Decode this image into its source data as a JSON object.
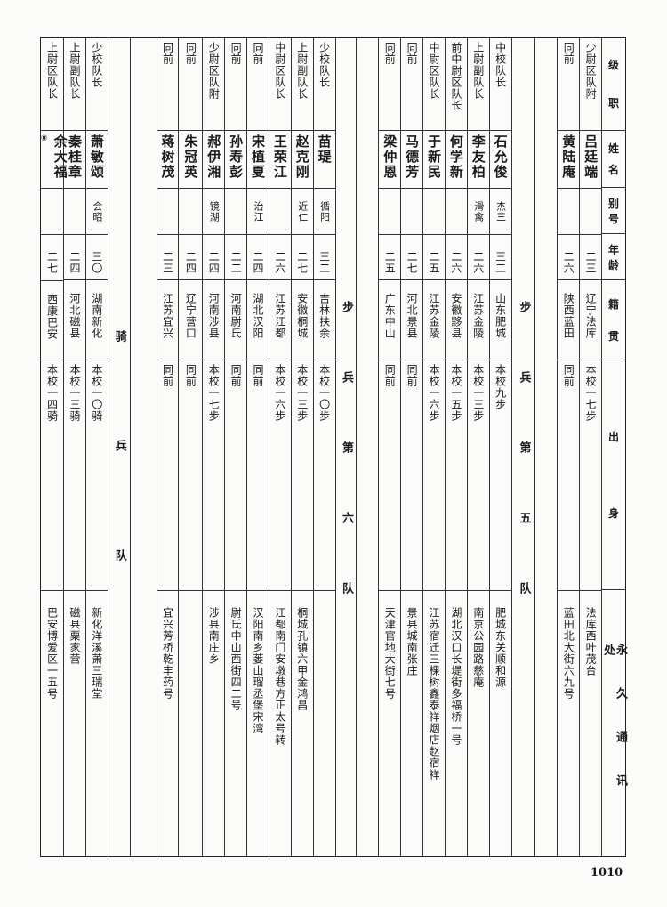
{
  "header": [
    "级职",
    "姓名",
    "别号",
    "年龄",
    "籍贯",
    "出身",
    "永久通讯处"
  ],
  "groups": [
    {
      "label": "",
      "rows": [
        {
          "rank": "少尉区队附",
          "name": "吕廷端",
          "alias": "",
          "age": "二三",
          "origin": "辽宁法库",
          "background": "本校一七步",
          "address": "法库西叶茂台"
        },
        {
          "rank": "同前",
          "name": "黄陆庵",
          "alias": "",
          "age": "二六",
          "origin": "陕西蓝田",
          "background": "同前",
          "address": "蓝田北大街六九号"
        }
      ]
    },
    {
      "label": "步兵第五队",
      "rows": [
        {
          "rank": "中校队长",
          "name": "石允俊",
          "alias": "杰三",
          "age": "三二",
          "origin": "山东肥城",
          "background": "本校九步",
          "address": "肥城东关顺和源"
        },
        {
          "rank": "上尉副队长",
          "name": "李友柏",
          "alias": "滑禽",
          "age": "二六",
          "origin": "江苏金陵",
          "background": "本校一三步",
          "address": "南京公园路慈庵"
        },
        {
          "rank": "前中尉区队长",
          "name": "何学新",
          "alias": "",
          "age": "二六",
          "origin": "安徽黟县",
          "background": "本校一五步",
          "address": "湖北汉口长堤街多福桥一号"
        },
        {
          "rank": "中尉区队长",
          "name": "于新民",
          "alias": "",
          "age": "二五",
          "origin": "江苏金陵",
          "background": "本校一六步",
          "address": "江苏宿迁三棵树鑫泰祥烟店赵宿祥"
        },
        {
          "rank": "同前",
          "name": "马德芳",
          "alias": "",
          "age": "二七",
          "origin": "河北景县",
          "background": "同前",
          "address": "景县城南张庄"
        },
        {
          "rank": "同前",
          "name": "梁仲恩",
          "alias": "",
          "age": "二五",
          "origin": "广东中山",
          "background": "同前",
          "address": "天津官地大街七号"
        }
      ]
    },
    {
      "label": "步兵第六队",
      "rows": [
        {
          "rank": "少校队长",
          "name": "苗瑅",
          "alias": "循阳",
          "age": "三二",
          "origin": "吉林扶余",
          "background": "本校一〇步",
          "address": ""
        },
        {
          "rank": "上尉副队长",
          "name": "赵克刚",
          "alias": "近仁",
          "age": "二七",
          "origin": "安徽桐城",
          "background": "本校一三步",
          "address": "桐城孔镇六甲金鸿昌"
        },
        {
          "rank": "中尉区队长",
          "name": "王荣江",
          "alias": "",
          "age": "二六",
          "origin": "江苏江都",
          "background": "本校一六步",
          "address": "江都南门安墩巷方正太号转"
        },
        {
          "rank": "同前",
          "name": "宋植夏",
          "alias": "治江",
          "age": "二四",
          "origin": "湖北汉阳",
          "background": "同前",
          "address": "汉阳南乡蒌山瑠丞堡宋湾"
        },
        {
          "rank": "同前",
          "name": "孙寿彭",
          "alias": "",
          "age": "二二",
          "origin": "河南尉氏",
          "background": "同前",
          "address": "尉氏中山西街四二号"
        },
        {
          "rank": "少尉区队附",
          "name": "郝伊湘",
          "alias": "镜湖",
          "age": "二四",
          "origin": "河南涉县",
          "background": "本校一七步",
          "address": "涉县南庄乡"
        },
        {
          "rank": "同前",
          "name": "朱冠英",
          "alias": "",
          "age": "二四",
          "origin": "辽宁营口",
          "background": "同前",
          "address": ""
        },
        {
          "rank": "同前",
          "name": "蒋树茂",
          "alias": "",
          "age": "二三",
          "origin": "江苏宜兴",
          "background": "同前",
          "address": "宜兴芳桥乾丰药号"
        }
      ]
    },
    {
      "label": "骑兵队",
      "rows": [
        {
          "rank": "少校队长",
          "name": "萧敏颂",
          "alias": "会昭",
          "age": "三〇",
          "origin": "湖南新化",
          "background": "本校一〇骑",
          "address": "新化洋溪萧三瑞堂"
        },
        {
          "rank": "上尉副队长",
          "name": "秦桂章",
          "alias": "",
          "age": "二四",
          "origin": "河北磁县",
          "background": "本校一三骑",
          "address": "磁县粟家营"
        },
        {
          "rank": "上尉区队长",
          "name": "余大福",
          "note_mark": "⑧",
          "alias": "",
          "age": "二七",
          "origin": "西康巴安",
          "background": "本校一四骑",
          "address": "巴安博爱区一五号"
        }
      ]
    }
  ],
  "page_number": "1010"
}
